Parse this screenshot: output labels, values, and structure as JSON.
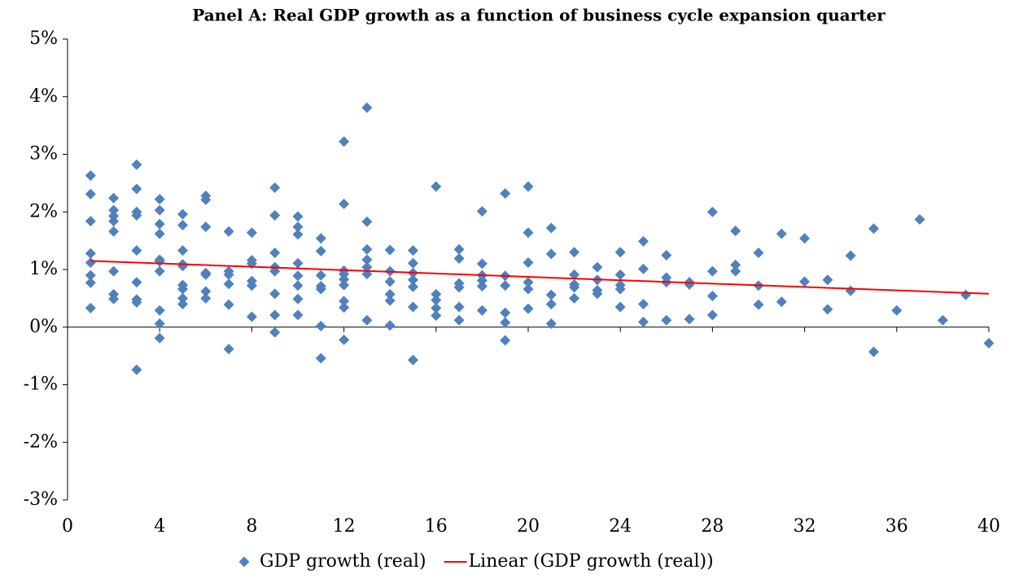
{
  "chart_data": {
    "type": "scatter",
    "title": "Panel A: Real GDP growth as a function of business cycle expansion quarter",
    "xlim": [
      0,
      40
    ],
    "xticks": [
      0,
      4,
      8,
      12,
      16,
      20,
      24,
      28,
      32,
      36,
      40
    ],
    "ylim": [
      -3,
      5
    ],
    "yticks": [
      {
        "value": -3,
        "label": "-3%"
      },
      {
        "value": -2,
        "label": "-2%"
      },
      {
        "value": -1,
        "label": "-1%"
      },
      {
        "value": 0,
        "label": "0%"
      },
      {
        "value": 1,
        "label": "1%"
      },
      {
        "value": 2,
        "label": "2%"
      },
      {
        "value": 3,
        "label": "3%"
      },
      {
        "value": 4,
        "label": "4%"
      },
      {
        "value": 5,
        "label": "5%"
      }
    ],
    "legend": "bottom",
    "series": [
      {
        "name": "GDP growth (real)",
        "color": "#4f81bd",
        "kind": "marker",
        "x": [
          1,
          1,
          1,
          1,
          1,
          1,
          1,
          1,
          2,
          2,
          2,
          2,
          2,
          2,
          2,
          2,
          3,
          3,
          3,
          3,
          3,
          3,
          3,
          3,
          3,
          4,
          4,
          4,
          4,
          4,
          4,
          4,
          4,
          4,
          4,
          5,
          5,
          5,
          5,
          5,
          5,
          5,
          5,
          5,
          6,
          6,
          6,
          6,
          6,
          6,
          6,
          7,
          7,
          7,
          7,
          7,
          7,
          8,
          8,
          8,
          8,
          8,
          8,
          9,
          9,
          9,
          9,
          9,
          9,
          9,
          9,
          10,
          10,
          10,
          10,
          10,
          10,
          10,
          10,
          11,
          11,
          11,
          11,
          11,
          11,
          11,
          12,
          12,
          12,
          12,
          12,
          12,
          12,
          12,
          12,
          13,
          13,
          13,
          13,
          13,
          13,
          13,
          14,
          14,
          14,
          14,
          14,
          14,
          15,
          15,
          15,
          15,
          15,
          15,
          15,
          16,
          16,
          16,
          16,
          16,
          17,
          17,
          17,
          17,
          17,
          17,
          18,
          18,
          18,
          18,
          18,
          18,
          19,
          19,
          19,
          19,
          19,
          19,
          20,
          20,
          20,
          20,
          20,
          20,
          21,
          21,
          21,
          21,
          21,
          22,
          22,
          22,
          22,
          22,
          23,
          23,
          23,
          23,
          24,
          24,
          24,
          24,
          24,
          25,
          25,
          25,
          25,
          26,
          26,
          26,
          26,
          27,
          27,
          27,
          28,
          28,
          28,
          28,
          29,
          29,
          29,
          30,
          30,
          30,
          31,
          31,
          32,
          32,
          33,
          33,
          34,
          34,
          35,
          35,
          36,
          37,
          38,
          39,
          40
        ],
        "values": [
          2.63,
          2.31,
          1.84,
          1.28,
          1.12,
          0.9,
          0.77,
          0.33,
          2.24,
          2.03,
          1.93,
          1.84,
          1.66,
          0.97,
          0.57,
          0.49,
          2.82,
          2.4,
          2.0,
          1.94,
          1.33,
          0.78,
          0.48,
          0.43,
          -0.74,
          2.22,
          2.03,
          1.79,
          1.62,
          1.17,
          1.14,
          0.97,
          0.29,
          0.06,
          -0.19,
          1.96,
          1.77,
          1.33,
          1.09,
          1.06,
          0.73,
          0.66,
          0.5,
          0.4,
          2.28,
          2.21,
          1.74,
          0.94,
          0.91,
          0.62,
          0.5,
          1.66,
          0.97,
          0.91,
          0.75,
          0.39,
          -0.38,
          1.64,
          1.16,
          1.1,
          0.8,
          0.72,
          0.18,
          2.42,
          1.94,
          1.29,
          1.04,
          0.97,
          0.58,
          0.21,
          -0.09,
          1.92,
          1.74,
          1.61,
          1.11,
          0.89,
          0.72,
          0.49,
          0.21,
          1.54,
          1.32,
          0.9,
          0.71,
          0.66,
          0.02,
          -0.54,
          3.22,
          2.14,
          0.98,
          0.92,
          0.83,
          0.73,
          0.45,
          0.34,
          -0.22,
          3.81,
          1.83,
          1.35,
          1.17,
          1.04,
          0.92,
          0.12,
          1.34,
          0.97,
          0.79,
          0.57,
          0.46,
          0.03,
          1.33,
          1.11,
          0.94,
          0.82,
          0.7,
          0.35,
          -0.57,
          2.44,
          0.57,
          0.47,
          0.33,
          0.2,
          1.35,
          1.19,
          0.76,
          0.69,
          0.35,
          0.12,
          2.01,
          1.1,
          0.9,
          0.81,
          0.71,
          0.29,
          2.32,
          0.89,
          0.72,
          0.25,
          0.08,
          -0.23,
          2.44,
          1.64,
          1.12,
          0.78,
          0.66,
          0.32,
          1.72,
          1.27,
          0.56,
          0.4,
          0.06,
          1.3,
          0.91,
          0.74,
          0.69,
          0.5,
          1.04,
          0.82,
          0.64,
          0.58,
          1.3,
          0.91,
          0.73,
          0.66,
          0.35,
          1.49,
          1.01,
          0.4,
          0.09,
          1.25,
          0.86,
          0.78,
          0.12,
          0.78,
          0.74,
          0.14,
          2.0,
          0.97,
          0.54,
          0.21,
          1.67,
          1.08,
          0.97,
          1.29,
          0.72,
          0.39,
          1.62,
          0.44,
          1.54,
          0.79,
          0.82,
          0.31,
          1.24,
          0.63,
          1.71,
          -0.43,
          0.29,
          1.87,
          0.12,
          0.56,
          -0.28
        ]
      },
      {
        "name": "Linear (GDP growth (real))",
        "color": "#ff0000",
        "kind": "line",
        "x": [
          1,
          40
        ],
        "values": [
          1.15,
          0.58
        ]
      }
    ]
  }
}
